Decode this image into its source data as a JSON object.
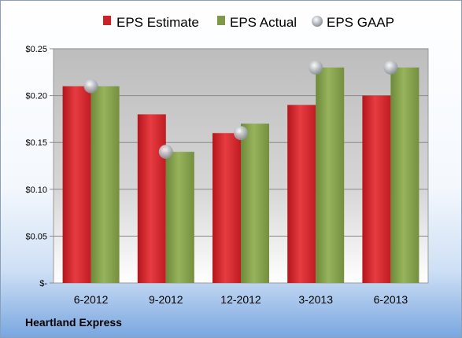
{
  "chart_data": {
    "type": "bar",
    "categories": [
      "6-2012",
      "9-2012",
      "12-2012",
      "3-2013",
      "6-2013"
    ],
    "series": [
      {
        "name": "EPS Estimate",
        "values": [
          0.21,
          0.18,
          0.16,
          0.19,
          0.2
        ],
        "color": "#cc2229"
      },
      {
        "name": "EPS Actual",
        "values": [
          0.21,
          0.14,
          0.17,
          0.23,
          0.23
        ],
        "color": "#7e9a48"
      },
      {
        "name": "EPS GAAP",
        "values": [
          0.21,
          0.14,
          0.16,
          0.23,
          0.23
        ],
        "color": "#b8bcc4",
        "marker": "circle"
      }
    ],
    "y_tick_labels": [
      "$-",
      "$0.05",
      "$0.10",
      "$0.15",
      "$0.20",
      "$0.25"
    ],
    "y_tick_values": [
      0,
      0.05,
      0.1,
      0.15,
      0.2,
      0.25
    ],
    "ylim": [
      0,
      0.25
    ],
    "grid": true,
    "legend_position": "top",
    "footer": "Heartland Express"
  }
}
